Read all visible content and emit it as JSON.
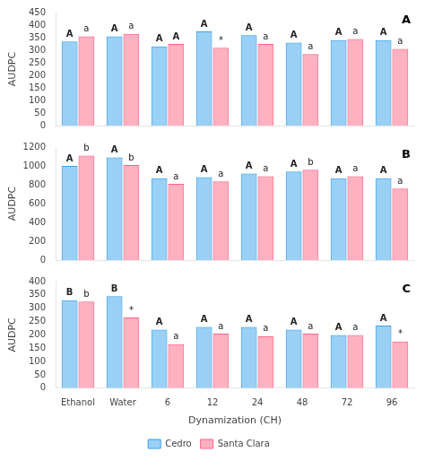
{
  "chart_data": [
    {
      "type": "bar",
      "title": "A",
      "categories": [
        "Ethanol",
        "Water",
        "6",
        "12",
        "24",
        "48",
        "72",
        "96"
      ],
      "series": [
        {
          "name": "Cedro",
          "values": [
            335,
            355,
            315,
            375,
            360,
            330,
            340,
            340
          ],
          "annotations": [
            "A",
            "A",
            "A",
            "A",
            "A",
            "A",
            "A",
            "A"
          ]
        },
        {
          "name": "Santa Clara",
          "values": [
            355,
            365,
            325,
            310,
            325,
            285,
            345,
            305
          ],
          "annotations": [
            "a",
            "a",
            "A",
            "*",
            "a",
            "a",
            "a",
            "a"
          ]
        }
      ],
      "ylabel": "AUDPC",
      "ylim": [
        0,
        450
      ],
      "yticks": [
        0,
        50,
        100,
        150,
        200,
        250,
        300,
        350,
        400,
        450
      ],
      "grid": false,
      "tick_labels": "y"
    },
    {
      "type": "bar",
      "title": "B",
      "categories": [
        "Ethanol",
        "Water",
        "6",
        "12",
        "24",
        "48",
        "72",
        "96"
      ],
      "series": [
        {
          "name": "Cedro",
          "values": [
            1000,
            1090,
            870,
            880,
            920,
            940,
            870,
            870
          ],
          "annotations": [
            "A",
            "A",
            "A",
            "A",
            "A",
            "A",
            "A",
            "A"
          ]
        },
        {
          "name": "Santa Clara",
          "values": [
            1110,
            1010,
            810,
            835,
            890,
            960,
            890,
            760
          ],
          "annotations": [
            "b",
            "b",
            "a",
            "a",
            "a",
            "b",
            "a",
            "a"
          ]
        }
      ],
      "ylabel": "AUDPC",
      "ylim": [
        0,
        1200
      ],
      "yticks": [
        0,
        200,
        400,
        600,
        800,
        1000,
        1200
      ],
      "grid": false,
      "tick_labels": "y"
    },
    {
      "type": "bar",
      "title": "C",
      "categories": [
        "Ethanol",
        "Water",
        "6",
        "12",
        "24",
        "48",
        "72",
        "96"
      ],
      "series": [
        {
          "name": "Cedro",
          "values": [
            330,
            345,
            220,
            230,
            230,
            220,
            200,
            235
          ],
          "annotations": [
            "B",
            "B",
            "A",
            "A",
            "A",
            "A",
            "A",
            "A"
          ]
        },
        {
          "name": "Santa Clara",
          "values": [
            325,
            265,
            165,
            205,
            195,
            205,
            200,
            175
          ],
          "annotations": [
            "b",
            "*",
            "a",
            "a",
            "a",
            "a",
            "a",
            "*"
          ]
        }
      ],
      "xlabel": "Dynamization (CH)",
      "ylabel": "AUDPC",
      "ylim": [
        0,
        400
      ],
      "yticks": [
        0,
        50,
        100,
        150,
        200,
        250,
        300,
        350,
        400
      ],
      "grid": false,
      "legend": "bottom"
    }
  ]
}
